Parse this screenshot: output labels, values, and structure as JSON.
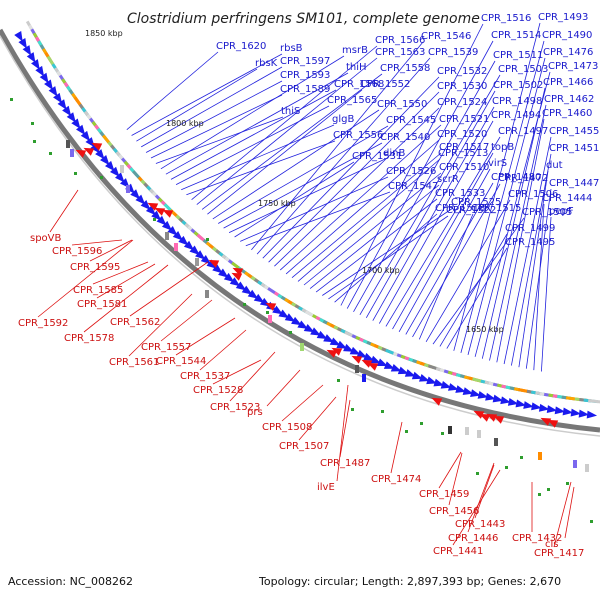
{
  "title": "Clostridium perfringens SM101, complete genome",
  "footer": {
    "accession": "Accession: NC_008262",
    "summary": "Topology: circular; Length: 2,897,393 bp; Genes: 2,670"
  },
  "ticks": [
    "1850 kbp",
    "1800 kbp",
    "1750 kbp",
    "1700 kbp",
    "1650 kbp"
  ],
  "top_labels": [
    "CPR_1620",
    "rbsB",
    "rbsK",
    "CPR_1597",
    "CPR_1593",
    "CPR_1589",
    "thiS",
    "msrB",
    "thiH",
    "CPR_1568",
    "CPR_1565",
    "glgB",
    "CPR_1556",
    "CPR_1566",
    "CPR_1563",
    "CPR_1558",
    "CPR_1552",
    "CPR_1550",
    "CPR_1545",
    "CPR_1540",
    "dinB",
    "CPR_1531",
    "CPR_1526",
    "CPR_1547",
    "CPR_1546",
    "CPR_1539",
    "CPR_1532",
    "CPR_1530",
    "CPR_1524",
    "CPR_1521",
    "CPR_1520",
    "CPR_1517",
    "CPR_1513",
    "CPR_1510",
    "scrR",
    "CPR_1533",
    "CPR_1525",
    "CPR_1522",
    "CPR_1518",
    "CPR_1516",
    "CPR_1514",
    "CPR_1511",
    "CPR_1503",
    "CPR_1502",
    "CPR_1498",
    "CPR_1494",
    "CPR_1497",
    "topB",
    "virS",
    "CPR_1480",
    "CPR_1472",
    "CPR_1515",
    "CPR_1506",
    "CPR_1505",
    "CPR_1499",
    "CPR_1495",
    "CPR_1493",
    "CPR_1490",
    "CPR_1476",
    "CPR_1473",
    "CPR_1466",
    "CPR_1462",
    "CPR_1460",
    "CPR_1455",
    "CPR_1451",
    "dut",
    "CPR_1447",
    "CPR_1444",
    "pepF"
  ],
  "bottom_labels": [
    "spoVB",
    "CPR_1596",
    "CPR_1595",
    "CPR_1585",
    "CPR_1581",
    "CPR_1592",
    "CPR_1578",
    "CPR_1562",
    "CPR_1561",
    "CPR_1557",
    "CPR_1544",
    "CPR_1537",
    "CPR_1528",
    "CPR_1523",
    "prs",
    "CPR_1508",
    "CPR_1507",
    "CPR_1487",
    "ilvE",
    "CPR_1474",
    "CPR_1459",
    "CPR_1456",
    "CPR_1443",
    "CPR_1446",
    "CPR_1441",
    "CPR_1432",
    "cls",
    "CPR_1417"
  ]
}
